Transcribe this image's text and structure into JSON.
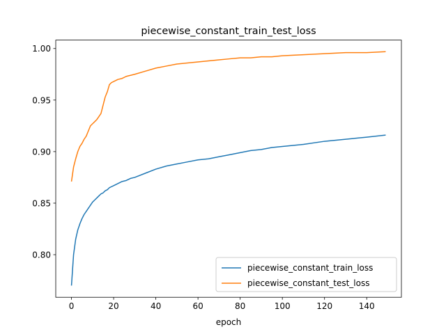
{
  "chart_data": {
    "type": "line",
    "title": "piecewise_constant_train_test_loss",
    "xlabel": "epoch",
    "ylabel": "",
    "xlim": [
      -7.45,
      156.45
    ],
    "ylim": [
      0.7587,
      1.0082
    ],
    "xticks": [
      0,
      20,
      40,
      60,
      80,
      100,
      120,
      140
    ],
    "yticks": [
      0.8,
      0.85,
      0.9,
      0.95,
      1.0
    ],
    "xtick_labels": [
      "0",
      "20",
      "40",
      "60",
      "80",
      "100",
      "120",
      "140"
    ],
    "ytick_labels": [
      "0.80",
      "0.85",
      "0.90",
      "0.95",
      "1.00"
    ],
    "grid": false,
    "legend_position": "lower-right",
    "x": [
      0,
      1,
      2,
      3,
      4,
      5,
      6,
      7,
      8,
      9,
      10,
      11,
      12,
      13,
      14,
      15,
      16,
      17,
      18,
      19,
      20,
      22,
      24,
      26,
      28,
      30,
      35,
      40,
      45,
      50,
      55,
      60,
      65,
      70,
      75,
      80,
      85,
      90,
      95,
      100,
      110,
      120,
      130,
      140,
      149
    ],
    "series": [
      {
        "name": "piecewise_constant_train_loss",
        "color": "#1f77b4",
        "values": [
          0.77,
          0.8,
          0.815,
          0.824,
          0.83,
          0.835,
          0.839,
          0.842,
          0.845,
          0.848,
          0.851,
          0.853,
          0.855,
          0.857,
          0.859,
          0.86,
          0.862,
          0.863,
          0.865,
          0.866,
          0.867,
          0.869,
          0.871,
          0.872,
          0.874,
          0.875,
          0.879,
          0.883,
          0.886,
          0.888,
          0.89,
          0.892,
          0.893,
          0.895,
          0.897,
          0.899,
          0.901,
          0.902,
          0.904,
          0.905,
          0.907,
          0.91,
          0.912,
          0.914,
          0.916
        ]
      },
      {
        "name": "piecewise_constant_test_loss",
        "color": "#ff7f0e",
        "values": [
          0.871,
          0.885,
          0.893,
          0.9,
          0.905,
          0.908,
          0.912,
          0.915,
          0.92,
          0.925,
          0.927,
          0.929,
          0.931,
          0.934,
          0.937,
          0.945,
          0.953,
          0.958,
          0.965,
          0.967,
          0.968,
          0.97,
          0.971,
          0.973,
          0.974,
          0.975,
          0.978,
          0.981,
          0.983,
          0.985,
          0.986,
          0.987,
          0.988,
          0.989,
          0.99,
          0.991,
          0.991,
          0.992,
          0.992,
          0.993,
          0.994,
          0.995,
          0.996,
          0.996,
          0.997
        ]
      }
    ]
  }
}
